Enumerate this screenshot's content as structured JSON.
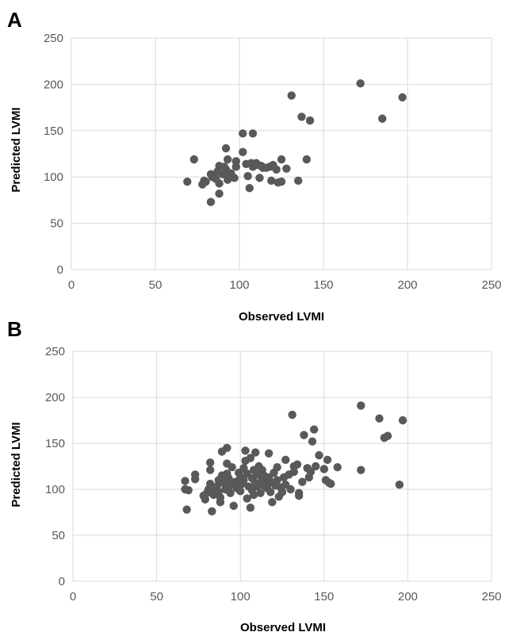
{
  "chart_data": [
    {
      "panel": "A",
      "type": "scatter",
      "xlabel": "Observed LVMI",
      "ylabel": "Predicted LVMI",
      "xlim": [
        0,
        250
      ],
      "ylim": [
        0,
        250
      ],
      "xticks": [
        "0",
        "50",
        "100",
        "150",
        "200",
        "250"
      ],
      "yticks": [
        "0",
        "50",
        "100",
        "150",
        "200",
        "250"
      ],
      "grid": true,
      "marker_color": "#595959",
      "points": [
        [
          69,
          95
        ],
        [
          73,
          119
        ],
        [
          78,
          92
        ],
        [
          79,
          96
        ],
        [
          80,
          95
        ],
        [
          83,
          103
        ],
        [
          83,
          73
        ],
        [
          84,
          100
        ],
        [
          86,
          98
        ],
        [
          87,
          106
        ],
        [
          88,
          112
        ],
        [
          88,
          93
        ],
        [
          88,
          82
        ],
        [
          90,
          103
        ],
        [
          91,
          111
        ],
        [
          92,
          108
        ],
        [
          92,
          131
        ],
        [
          93,
          119
        ],
        [
          93,
          97
        ],
        [
          94,
          101
        ],
        [
          95,
          104
        ],
        [
          97,
          99
        ],
        [
          98,
          111
        ],
        [
          98,
          117
        ],
        [
          102,
          127
        ],
        [
          102,
          147
        ],
        [
          104,
          114
        ],
        [
          105,
          101
        ],
        [
          106,
          88
        ],
        [
          107,
          115
        ],
        [
          108,
          111
        ],
        [
          108,
          147
        ],
        [
          110,
          115
        ],
        [
          111,
          113
        ],
        [
          112,
          99
        ],
        [
          113,
          112
        ],
        [
          114,
          110
        ],
        [
          116,
          110
        ],
        [
          118,
          111
        ],
        [
          119,
          96
        ],
        [
          120,
          113
        ],
        [
          122,
          108
        ],
        [
          123,
          94
        ],
        [
          125,
          95
        ],
        [
          125,
          119
        ],
        [
          128,
          109
        ],
        [
          131,
          188
        ],
        [
          135,
          96
        ],
        [
          137,
          165
        ],
        [
          140,
          119
        ],
        [
          142,
          161
        ],
        [
          172,
          201
        ],
        [
          185,
          163
        ],
        [
          197,
          186
        ]
      ]
    },
    {
      "panel": "B",
      "type": "scatter",
      "xlabel": "Observed LVMI",
      "ylabel": "Predicted LVMI",
      "xlim": [
        0,
        250
      ],
      "ylim": [
        0,
        250
      ],
      "xticks": [
        "0",
        "50",
        "100",
        "150",
        "200",
        "250"
      ],
      "yticks": [
        "0",
        "50",
        "100",
        "150",
        "200",
        "250"
      ],
      "grid": true,
      "marker_color": "#595959",
      "points": [
        [
          67,
          109
        ],
        [
          67,
          100
        ],
        [
          68,
          78
        ],
        [
          69,
          99
        ],
        [
          73,
          116
        ],
        [
          73,
          111
        ],
        [
          78,
          93
        ],
        [
          79,
          89
        ],
        [
          80,
          96
        ],
        [
          81,
          100
        ],
        [
          82,
          106
        ],
        [
          82,
          121
        ],
        [
          82,
          129
        ],
        [
          83,
          76
        ],
        [
          84,
          94
        ],
        [
          85,
          99
        ],
        [
          86,
          103
        ],
        [
          87,
          110
        ],
        [
          87,
          97
        ],
        [
          88,
          91
        ],
        [
          88,
          86
        ],
        [
          89,
          141
        ],
        [
          89,
          115
        ],
        [
          90,
          107
        ],
        [
          91,
          100
        ],
        [
          92,
          145
        ],
        [
          92,
          128
        ],
        [
          92,
          117
        ],
        [
          93,
          112
        ],
        [
          94,
          104
        ],
        [
          94,
          96
        ],
        [
          95,
          124
        ],
        [
          96,
          82
        ],
        [
          97,
          108
        ],
        [
          98,
          101
        ],
        [
          99,
          118
        ],
        [
          100,
          113
        ],
        [
          100,
          98
        ],
        [
          101,
          106
        ],
        [
          102,
          123
        ],
        [
          102,
          110
        ],
        [
          103,
          142
        ],
        [
          103,
          131
        ],
        [
          104,
          90
        ],
        [
          104,
          117
        ],
        [
          105,
          103
        ],
        [
          106,
          134
        ],
        [
          106,
          80
        ],
        [
          107,
          112
        ],
        [
          107,
          99
        ],
        [
          108,
          121
        ],
        [
          108,
          94
        ],
        [
          109,
          140
        ],
        [
          109,
          107
        ],
        [
          110,
          116
        ],
        [
          110,
          103
        ],
        [
          111,
          125
        ],
        [
          111,
          118
        ],
        [
          112,
          96
        ],
        [
          113,
          110
        ],
        [
          113,
          121
        ],
        [
          114,
          104
        ],
        [
          114,
          115
        ],
        [
          115,
          108
        ],
        [
          116,
          101
        ],
        [
          117,
          139
        ],
        [
          117,
          113
        ],
        [
          118,
          97
        ],
        [
          119,
          86
        ],
        [
          119,
          107
        ],
        [
          120,
          118
        ],
        [
          121,
          104
        ],
        [
          122,
          124
        ],
        [
          122,
          110
        ],
        [
          123,
          92
        ],
        [
          124,
          102
        ],
        [
          125,
          97
        ],
        [
          126,
          113
        ],
        [
          127,
          132
        ],
        [
          127,
          105
        ],
        [
          129,
          116
        ],
        [
          130,
          100
        ],
        [
          131,
          181
        ],
        [
          132,
          125
        ],
        [
          132,
          119
        ],
        [
          134,
          127
        ],
        [
          135,
          96
        ],
        [
          135,
          93
        ],
        [
          137,
          108
        ],
        [
          138,
          159
        ],
        [
          140,
          123
        ],
        [
          141,
          113
        ],
        [
          142,
          119
        ],
        [
          143,
          152
        ],
        [
          144,
          165
        ],
        [
          145,
          125
        ],
        [
          147,
          137
        ],
        [
          150,
          122
        ],
        [
          151,
          110
        ],
        [
          152,
          132
        ],
        [
          153,
          107
        ],
        [
          154,
          106
        ],
        [
          158,
          124
        ],
        [
          172,
          191
        ],
        [
          172,
          121
        ],
        [
          183,
          177
        ],
        [
          186,
          156
        ],
        [
          188,
          158
        ],
        [
          195,
          105
        ],
        [
          197,
          175
        ]
      ]
    }
  ]
}
